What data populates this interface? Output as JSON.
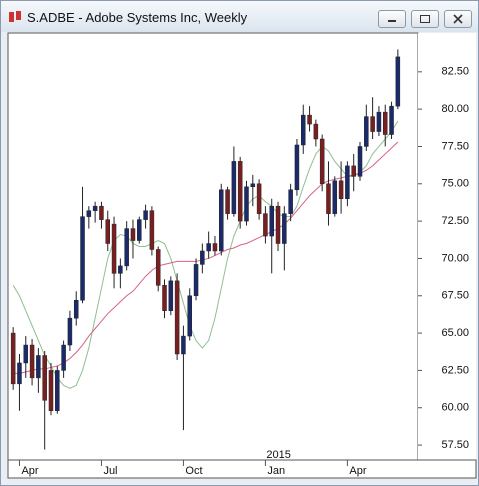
{
  "window_title": "S.ADBE - Adobe Systems Inc, Weekly",
  "chart_data": {
    "type": "candlestick",
    "categories": [
      null,
      "Apr",
      null,
      null,
      null,
      null,
      null,
      null,
      null,
      null,
      null,
      null,
      null,
      null,
      "Jul",
      null,
      null,
      null,
      null,
      null,
      null,
      null,
      null,
      null,
      null,
      null,
      null,
      "Oct",
      null,
      null,
      null,
      null,
      null,
      null,
      null,
      null,
      null,
      null,
      null,
      null,
      "Jan",
      null,
      null,
      null,
      null,
      null,
      null,
      null,
      null,
      null,
      null,
      null,
      null,
      "Apr",
      null,
      null,
      null,
      null,
      null,
      null,
      null,
      null
    ],
    "year_categories": [
      null,
      null,
      null,
      null,
      null,
      null,
      null,
      null,
      null,
      null,
      null,
      null,
      null,
      null,
      null,
      null,
      null,
      null,
      null,
      null,
      null,
      null,
      null,
      null,
      null,
      null,
      null,
      null,
      null,
      null,
      null,
      null,
      null,
      null,
      null,
      null,
      null,
      null,
      null,
      null,
      "2015",
      null,
      null,
      null,
      null,
      null,
      null,
      null,
      null,
      null,
      null,
      null,
      null,
      null,
      null,
      null,
      null,
      null,
      null,
      null,
      null,
      null
    ],
    "open": [
      65.0,
      61.6,
      63.0,
      64.2,
      62.0,
      63.5,
      62.5,
      59.8,
      62.5,
      64.2,
      66.0,
      67.2,
      72.8,
      73.2,
      73.5,
      72.6,
      72.3,
      69.0,
      69.5,
      72.0,
      71.2,
      72.6,
      73.2,
      70.6,
      68.2,
      66.5,
      68.5,
      63.6,
      64.8,
      67.5,
      69.6,
      70.5,
      71.0,
      70.5,
      74.6,
      73.0,
      76.5,
      72.5,
      74.8,
      75.0,
      73.0,
      71.5,
      73.5,
      71.0,
      73.0,
      74.6,
      77.6,
      79.6,
      79.0,
      78.0,
      75.0,
      73.0,
      75.2,
      74.0,
      76.2,
      75.5,
      77.5,
      79.5,
      78.5,
      79.8,
      78.3,
      80.2
    ],
    "high": [
      65.4,
      63.6,
      64.8,
      64.6,
      64.0,
      63.8,
      63.0,
      62.8,
      64.5,
      66.5,
      67.8,
      74.8,
      73.5,
      73.8,
      73.8,
      73.2,
      72.8,
      70.0,
      72.5,
      72.6,
      72.8,
      73.6,
      73.5,
      70.8,
      68.6,
      68.8,
      69.0,
      65.5,
      68.0,
      70.0,
      71.0,
      71.8,
      71.5,
      75.0,
      74.8,
      77.5,
      76.8,
      75.2,
      75.6,
      75.3,
      73.5,
      74.0,
      73.8,
      73.5,
      75.0,
      78.0,
      80.3,
      80.2,
      79.3,
      78.3,
      76.5,
      75.5,
      76.5,
      76.5,
      77.0,
      77.8,
      80.3,
      80.8,
      80.2,
      80.3,
      80.5,
      84.0
    ],
    "low": [
      61.2,
      59.8,
      62.0,
      61.5,
      61.0,
      57.2,
      59.5,
      59.6,
      62.0,
      63.8,
      65.5,
      67.0,
      72.0,
      72.4,
      72.0,
      70.5,
      68.0,
      68.0,
      69.2,
      70.0,
      71.0,
      72.0,
      70.2,
      67.8,
      66.0,
      66.2,
      63.2,
      58.5,
      64.5,
      67.2,
      69.0,
      70.0,
      70.2,
      70.2,
      72.6,
      72.8,
      72.0,
      72.2,
      73.5,
      72.6,
      71.0,
      69.0,
      70.5,
      69.2,
      72.5,
      74.2,
      77.0,
      78.5,
      77.5,
      74.5,
      72.2,
      72.8,
      73.0,
      73.5,
      74.5,
      75.2,
      77.2,
      78.0,
      78.2,
      77.5,
      78.0,
      80.0
    ],
    "close": [
      61.6,
      63.0,
      64.2,
      62.0,
      63.5,
      60.5,
      59.8,
      62.5,
      64.2,
      66.0,
      67.2,
      72.8,
      73.2,
      73.5,
      72.6,
      71.0,
      69.0,
      69.5,
      72.0,
      71.2,
      72.6,
      73.2,
      70.6,
      68.2,
      66.5,
      68.5,
      63.6,
      64.8,
      67.5,
      69.6,
      70.5,
      71.0,
      70.5,
      74.6,
      73.0,
      76.5,
      72.5,
      74.8,
      75.0,
      73.0,
      71.5,
      73.5,
      71.0,
      73.0,
      74.6,
      77.6,
      79.6,
      79.0,
      78.0,
      75.0,
      73.0,
      75.2,
      74.0,
      76.2,
      75.5,
      77.5,
      79.5,
      78.5,
      79.8,
      78.3,
      80.2,
      83.5
    ],
    "up_color": "#1b2a6b",
    "down_color": "#7a1f1f",
    "overlays": [
      {
        "color": "#8fbf8f",
        "values": [
          68.2,
          67.5,
          66.5,
          65.5,
          64.5,
          63.5,
          62.8,
          62.0,
          61.5,
          61.3,
          61.5,
          62.5,
          64.0,
          66.0,
          68.0,
          70.0,
          71.2,
          71.6,
          71.5,
          71.0,
          70.8,
          70.8,
          71.0,
          71.2,
          71.0,
          70.0,
          68.5,
          67.0,
          65.5,
          64.5,
          64.0,
          64.5,
          66.0,
          68.0,
          70.0,
          71.5,
          72.5,
          73.5,
          74.0,
          74.2,
          73.8,
          73.5,
          73.0,
          72.8,
          72.8,
          73.5,
          74.8,
          76.0,
          77.0,
          77.5,
          77.2,
          76.5,
          76.0,
          75.5,
          75.5,
          75.8,
          76.2,
          77.0,
          77.5,
          78.0,
          78.5,
          79.2
        ]
      },
      {
        "color": "#d9608a",
        "values": [
          62.3,
          62.3,
          62.4,
          62.5,
          62.6,
          62.6,
          62.7,
          62.8,
          63.0,
          63.3,
          63.7,
          64.2,
          64.8,
          65.3,
          65.8,
          66.3,
          66.7,
          67.1,
          67.5,
          67.8,
          68.3,
          68.8,
          69.2,
          69.5,
          69.6,
          69.7,
          69.8,
          69.8,
          69.8,
          69.8,
          69.9,
          70.0,
          70.2,
          70.4,
          70.6,
          70.7,
          70.9,
          71.0,
          71.2,
          71.4,
          71.6,
          71.8,
          72.0,
          72.3,
          72.7,
          73.2,
          73.7,
          74.2,
          74.6,
          75.0,
          75.2,
          75.3,
          75.4,
          75.5,
          75.6,
          75.7,
          75.9,
          76.2,
          76.6,
          77.0,
          77.4,
          77.8
        ]
      }
    ],
    "ylim": [
      56.5,
      85.1
    ],
    "yticks": [
      {
        "value": 57.5,
        "label": "57.50"
      },
      {
        "value": 60,
        "label": "60.00"
      },
      {
        "value": 62.5,
        "label": "62.50"
      },
      {
        "value": 65,
        "label": "65.00"
      },
      {
        "value": 67.5,
        "label": "67.50"
      },
      {
        "value": 70,
        "label": "70.00"
      },
      {
        "value": 72.5,
        "label": "72.50"
      },
      {
        "value": 75,
        "label": "75.00"
      },
      {
        "value": 77.5,
        "label": "77.50"
      },
      {
        "value": 80,
        "label": "80.00"
      },
      {
        "value": 82.5,
        "label": "82.50"
      }
    ]
  }
}
